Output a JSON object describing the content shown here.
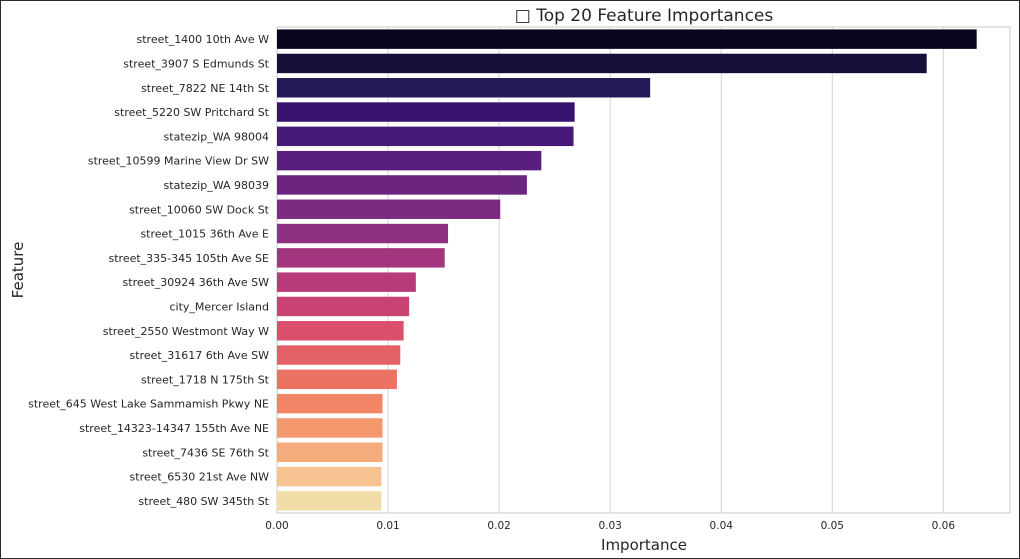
{
  "chart_data": {
    "type": "bar",
    "orientation": "horizontal",
    "title": "□ Top 20 Feature Importances",
    "xlabel": "Importance",
    "ylabel": "Feature",
    "xlim": [
      0,
      0.066
    ],
    "xticks": [
      "0.00",
      "0.01",
      "0.02",
      "0.03",
      "0.04",
      "0.05",
      "0.06"
    ],
    "grid": "vertical",
    "palette": "magma",
    "categories": [
      "street_1400 10th Ave W",
      "street_3907 S Edmunds St",
      "street_7822 NE 14th St",
      "street_5220 SW Pritchard St",
      "statezip_WA 98004",
      "street_10599 Marine View Dr SW",
      "statezip_WA 98039",
      "street_10060 SW Dock St",
      "street_1015 36th Ave E",
      "street_335-345 105th Ave SE",
      "street_30924 36th Ave SW",
      "city_Mercer Island",
      "street_2550 Westmont Way W",
      "street_31617 6th Ave SW",
      "street_1718 N 175th St",
      "street_645 West Lake Sammamish Pkwy NE",
      "street_14323-14347 155th Ave NE",
      "street_7436 SE 76th St",
      "street_6530 21st Ave NW",
      "street_480 SW 345th St"
    ],
    "values": [
      0.063,
      0.0585,
      0.0336,
      0.0268,
      0.0267,
      0.0238,
      0.0225,
      0.0201,
      0.0154,
      0.0151,
      0.0125,
      0.0119,
      0.0114,
      0.0111,
      0.0108,
      0.0095,
      0.0095,
      0.0095,
      0.0094,
      0.0094
    ],
    "colors": [
      "#08061d",
      "#150f3a",
      "#241856",
      "#37126f",
      "#46187a",
      "#591e7e",
      "#6b2580",
      "#7d2a81",
      "#8f3080",
      "#a2357e",
      "#b63b78",
      "#c84373",
      "#d94f6c",
      "#e46067",
      "#ec7264",
      "#f18566",
      "#f4986d",
      "#f5ab7b",
      "#f6c391",
      "#f2dda8"
    ]
  }
}
